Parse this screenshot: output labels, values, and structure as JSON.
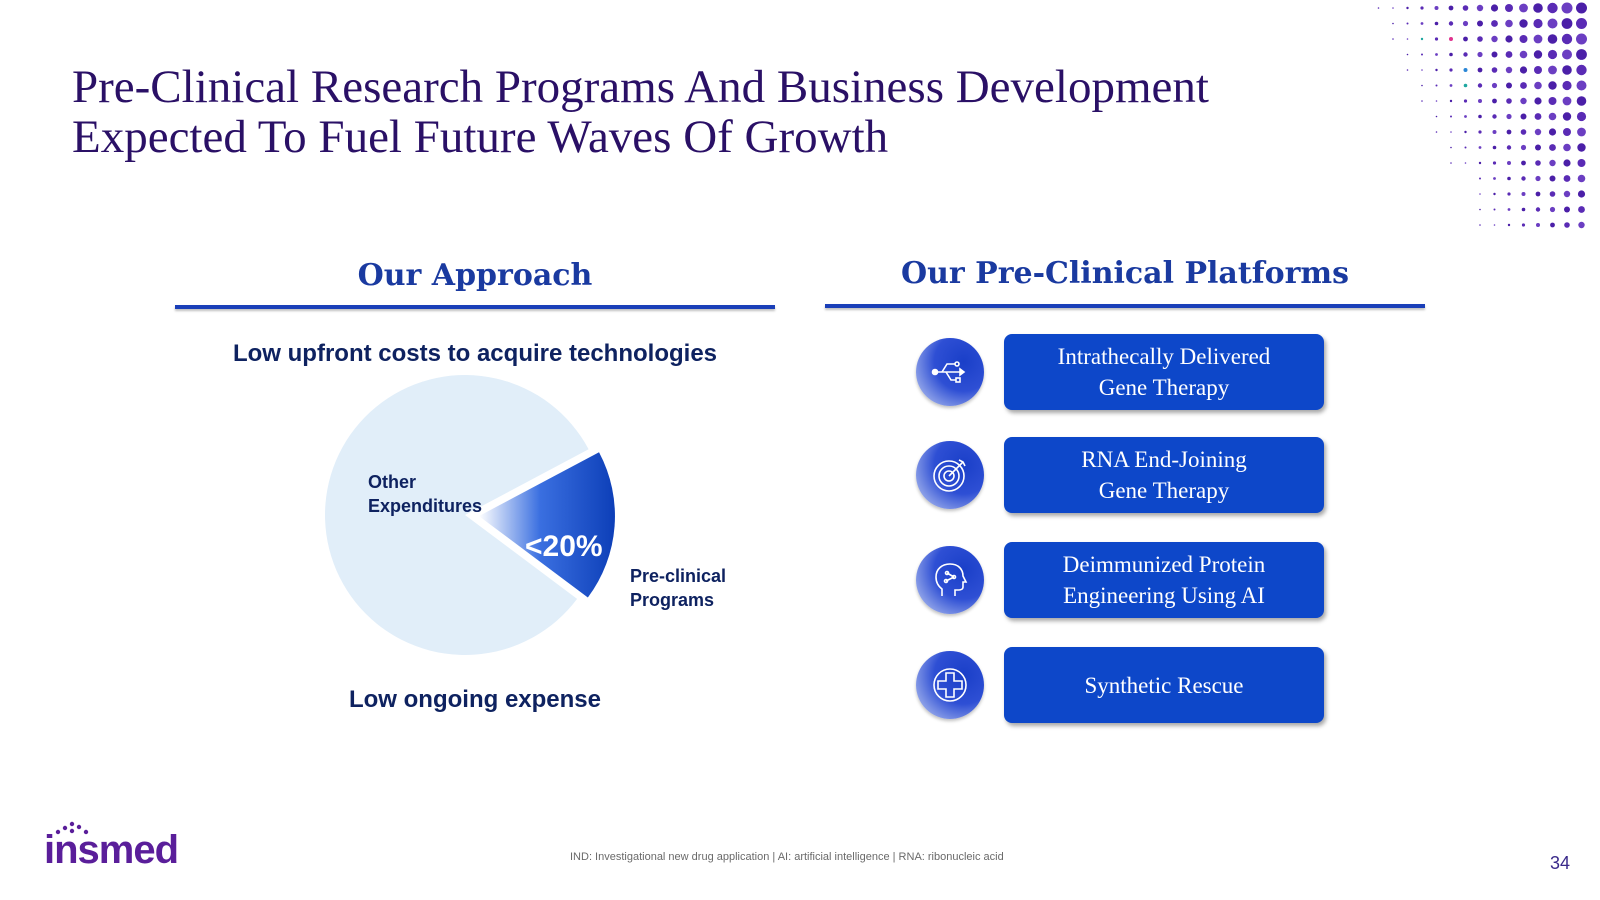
{
  "title": {
    "line1": "Pre-Clinical Research Programs And Business Development",
    "line2": "Expected To Fuel Future Waves Of Growth"
  },
  "approach": {
    "heading": "Our Approach",
    "top_text": "Low upfront costs to acquire technologies",
    "bottom_text": "Low ongoing expense"
  },
  "platforms": {
    "heading": "Our Pre-Clinical Platforms",
    "items": [
      {
        "line1": "Intrathecally Delivered",
        "line2": "Gene Therapy",
        "icon": "usb-icon"
      },
      {
        "line1": "RNA End-Joining",
        "line2": "Gene Therapy",
        "icon": "target-icon"
      },
      {
        "line1": "Deimmunized Protein",
        "line2": "Engineering Using AI",
        "icon": "ai-head-icon"
      },
      {
        "line1": "Synthetic Rescue",
        "line2": "",
        "icon": "medical-cross-icon"
      }
    ]
  },
  "chart_data": {
    "type": "pie",
    "slices": [
      {
        "label": "Other Expenditures",
        "label_lines": [
          "Other",
          "Expenditures"
        ],
        "value": 82,
        "color": "#e1eef9"
      },
      {
        "label": "Pre-clinical Programs",
        "label_lines": [
          "Pre-clinical",
          "Programs"
        ],
        "value": 18,
        "color": "#0d47c9",
        "display": "<20%"
      }
    ]
  },
  "footnote": "IND: Investigational new drug application | AI: artificial intelligence | RNA: ribonucleic acid",
  "page_number": "34",
  "logo": {
    "text": "insmed",
    "icon": "insmed-logo-icon"
  },
  "colors": {
    "title": "#2a1066",
    "accent": "#0d47c9",
    "heading": "#1a3aa0"
  }
}
